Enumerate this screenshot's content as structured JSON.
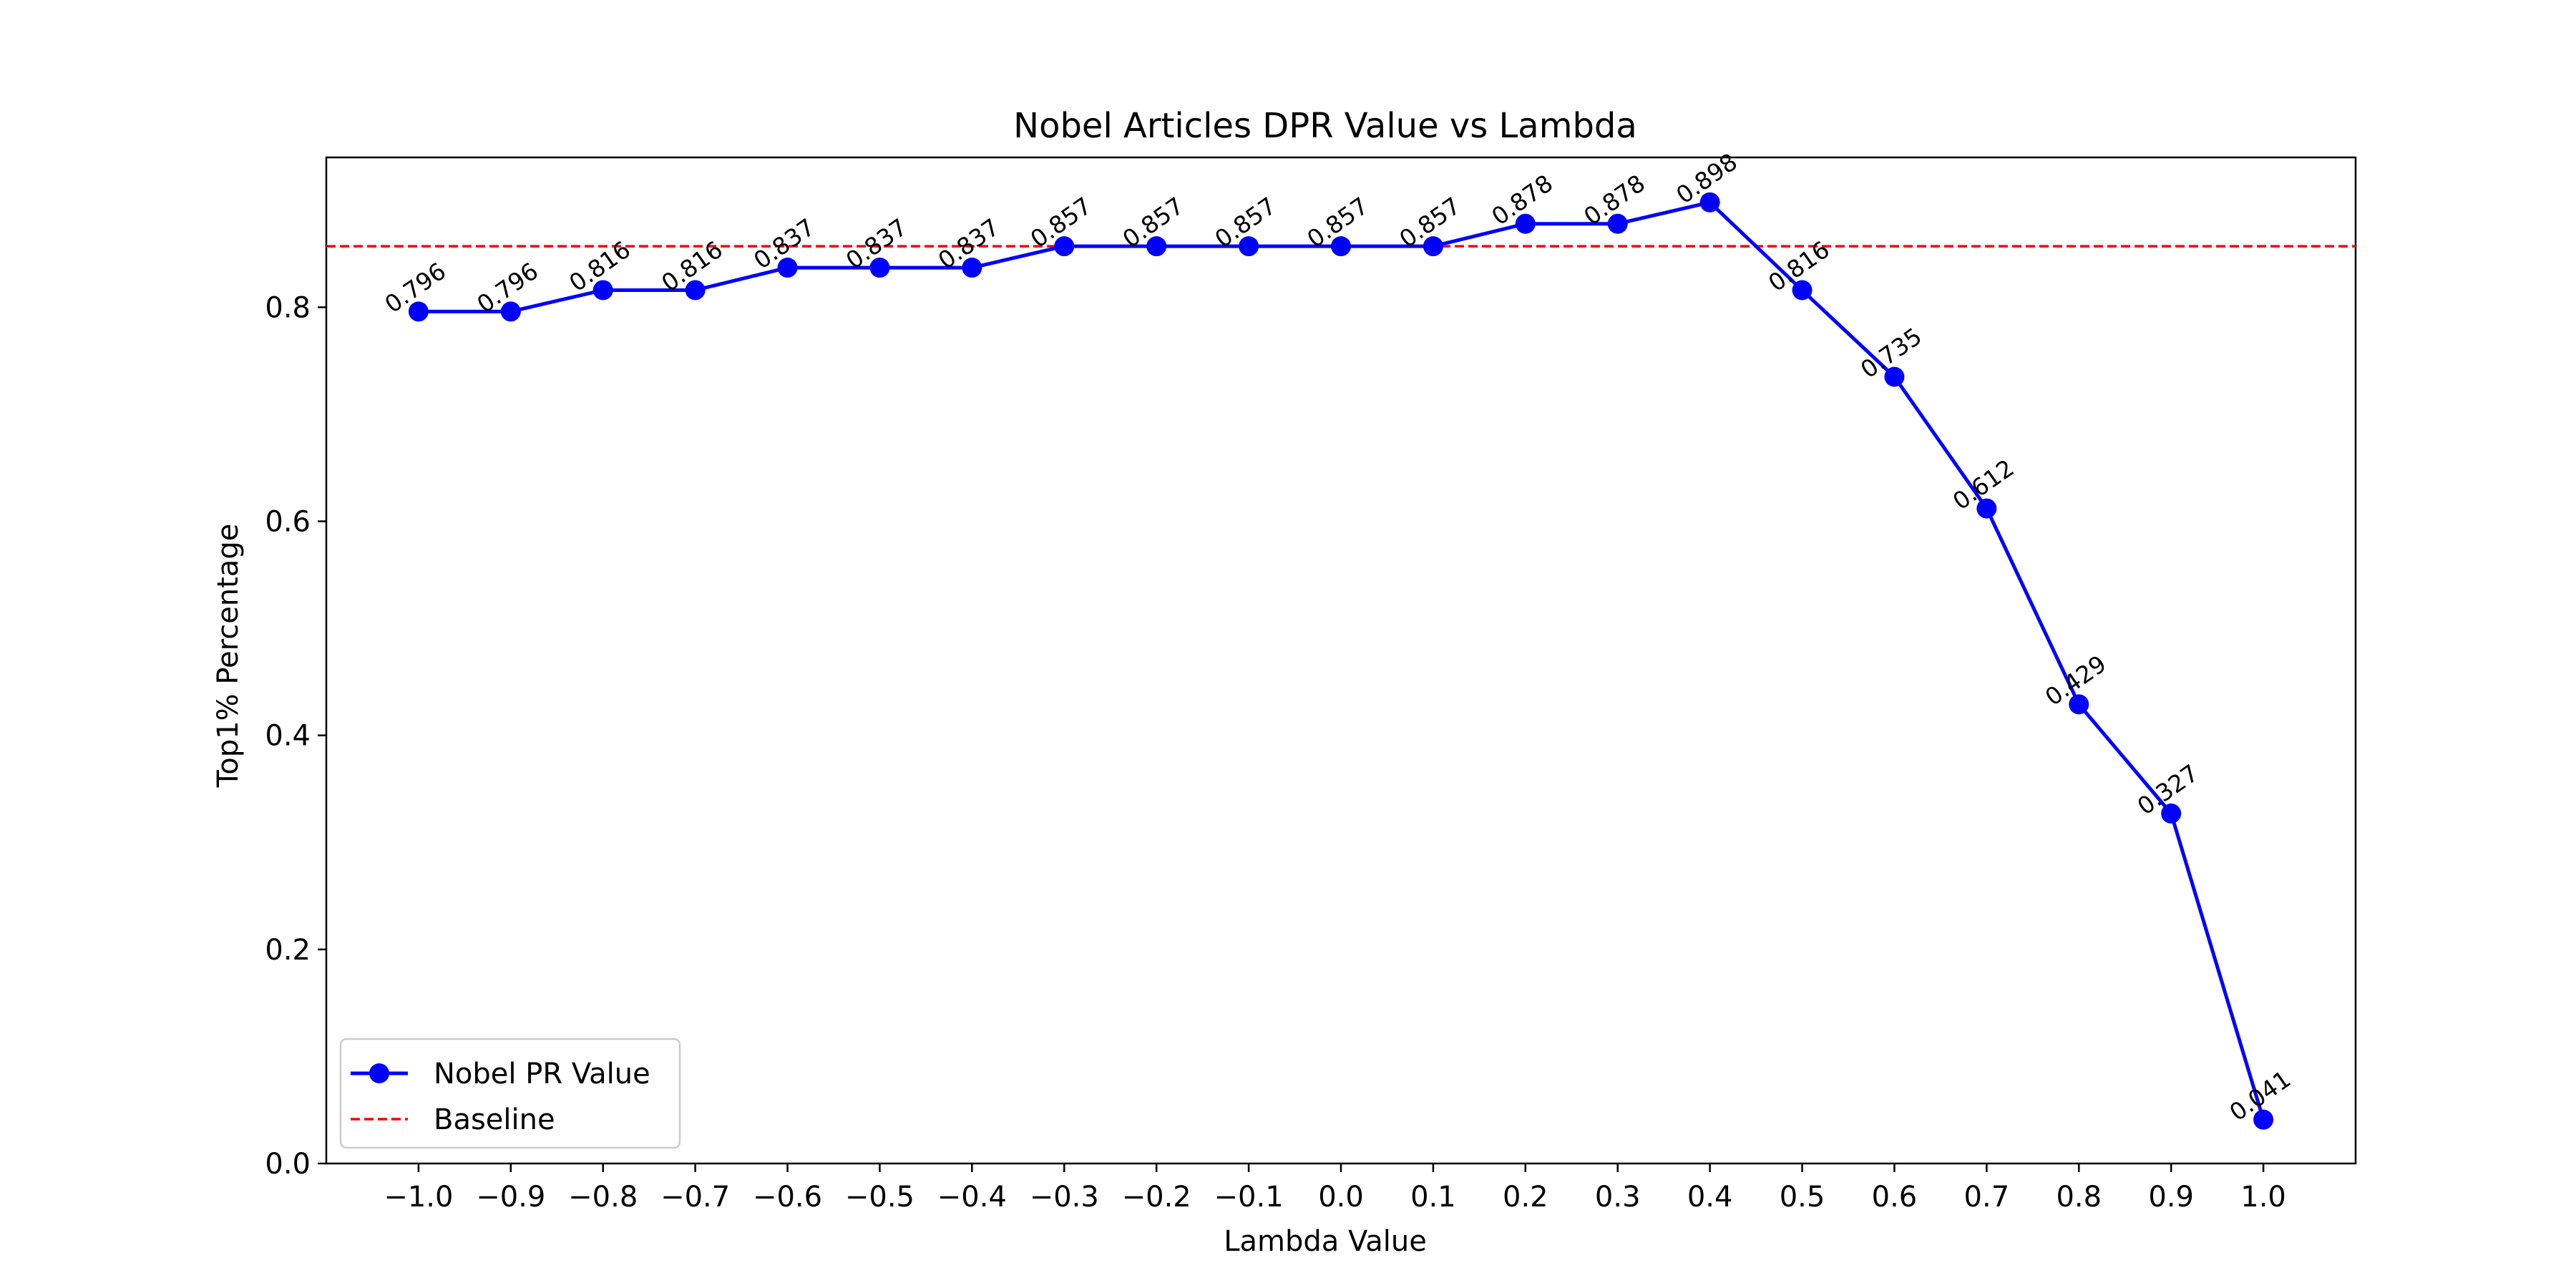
{
  "chart_data": {
    "type": "line",
    "title": "Nobel Articles DPR Value vs Lambda",
    "xlabel": "Lambda Value",
    "ylabel": "Top1% Percentage",
    "xlim": [
      -1.1,
      1.1
    ],
    "ylim": [
      0.0,
      0.94
    ],
    "x_ticks": [
      -1.0,
      -0.9,
      -0.8,
      -0.7,
      -0.6,
      -0.5,
      -0.4,
      -0.3,
      -0.2,
      -0.1,
      0.0,
      0.1,
      0.2,
      0.3,
      0.4,
      0.5,
      0.6,
      0.7,
      0.8,
      0.9,
      1.0
    ],
    "x_tick_labels": [
      "−1.0",
      "−0.9",
      "−0.8",
      "−0.7",
      "−0.6",
      "−0.5",
      "−0.4",
      "−0.3",
      "−0.2",
      "−0.1",
      "0.0",
      "0.1",
      "0.2",
      "0.3",
      "0.4",
      "0.5",
      "0.6",
      "0.7",
      "0.8",
      "0.9",
      "1.0"
    ],
    "y_ticks": [
      0.0,
      0.2,
      0.4,
      0.6,
      0.8
    ],
    "y_tick_labels": [
      "0.0",
      "0.2",
      "0.4",
      "0.6",
      "0.8"
    ],
    "grid": false,
    "legend_position": "bottom-left",
    "series": [
      {
        "name": "Nobel PR Value",
        "color": "#0000ff",
        "marker": "circle",
        "x": [
          -1.0,
          -0.9,
          -0.8,
          -0.7,
          -0.6,
          -0.5,
          -0.4,
          -0.3,
          -0.2,
          -0.1,
          0.0,
          0.1,
          0.2,
          0.3,
          0.4,
          0.5,
          0.6,
          0.7,
          0.8,
          0.9,
          1.0
        ],
        "y": [
          0.796,
          0.796,
          0.816,
          0.816,
          0.837,
          0.837,
          0.837,
          0.857,
          0.857,
          0.857,
          0.857,
          0.857,
          0.878,
          0.878,
          0.898,
          0.816,
          0.735,
          0.612,
          0.429,
          0.327,
          0.041
        ],
        "labels": [
          "0.796",
          "0.796",
          "0.816",
          "0.816",
          "0.837",
          "0.837",
          "0.837",
          "0.857",
          "0.857",
          "0.857",
          "0.857",
          "0.857",
          "0.878",
          "0.878",
          "0.898",
          "0.816",
          "0.735",
          "0.612",
          "0.429",
          "0.327",
          "0.041"
        ]
      }
    ],
    "baseline": {
      "name": "Baseline",
      "color": "#ff0000",
      "style": "dashed",
      "y": 0.857
    }
  }
}
